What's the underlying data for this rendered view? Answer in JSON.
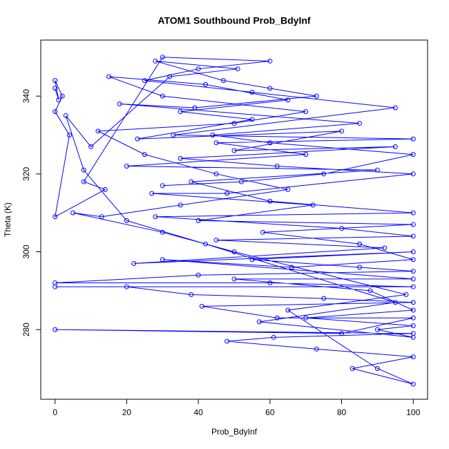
{
  "chart_data": {
    "type": "line",
    "title": "ATOM1 Southbound Prob_BdyInf",
    "x_label": "Prob_BdyInf",
    "y_label": "Theta (K)",
    "x": [
      0,
      1,
      0,
      2,
      0,
      4,
      0,
      14,
      8,
      30,
      60,
      40,
      25,
      55,
      95,
      33,
      100,
      45,
      70,
      20,
      90,
      38,
      60,
      100,
      28,
      80,
      100,
      45,
      92,
      22,
      100,
      55,
      85,
      100,
      40,
      0,
      60,
      100,
      0,
      20,
      38,
      75,
      100,
      41,
      62,
      100,
      80,
      0,
      100,
      61,
      48,
      73,
      100,
      83,
      100,
      90,
      65,
      98,
      50,
      30,
      5,
      13,
      35,
      65,
      45,
      25,
      12,
      50,
      70,
      30,
      15,
      42,
      65,
      35,
      55,
      23,
      80,
      50,
      95,
      35,
      62,
      100,
      48,
      27,
      72,
      40,
      100,
      58,
      85,
      100,
      66,
      30,
      100,
      50,
      88,
      100,
      70,
      100,
      90,
      100,
      57,
      95,
      42,
      20,
      8,
      3,
      10,
      32,
      51,
      28,
      47,
      60,
      73,
      39,
      18,
      85,
      44,
      60,
      100,
      75,
      52,
      30
    ],
    "series": [
      {
        "color": "#0000ff",
        "values": [
          342,
          339,
          344,
          340,
          336,
          330,
          309,
          316,
          318,
          350,
          349,
          347,
          344,
          341,
          337,
          330,
          329,
          328,
          325,
          322,
          321,
          318,
          313,
          310,
          309,
          306,
          304,
          303,
          301,
          297,
          300,
          298,
          296,
          295,
          294,
          292,
          292,
          291,
          291,
          291,
          289,
          288,
          287,
          286,
          283,
          283,
          279,
          280,
          279,
          278,
          277,
          275,
          273,
          270,
          266,
          270,
          285,
          289,
          300,
          305,
          310,
          309,
          312,
          316,
          320,
          325,
          331,
          333,
          336,
          340,
          345,
          343,
          339,
          336,
          334,
          329,
          331,
          326,
          327,
          324,
          322,
          320,
          315,
          315,
          312,
          308,
          307,
          305,
          302,
          298,
          296,
          298,
          293,
          293,
          290,
          285,
          283,
          281,
          280,
          278,
          282,
          287,
          302,
          308,
          321,
          335,
          327,
          345,
          347,
          349,
          344,
          342,
          340,
          337,
          338,
          333,
          330,
          328,
          325,
          320,
          318,
          317
        ]
      }
    ],
    "xlim": [
      -4,
      104
    ],
    "ylim": [
      262.1,
      354.4
    ],
    "xticks": [
      0,
      20,
      40,
      60,
      80,
      100
    ],
    "yticks": [
      280,
      300,
      320,
      340
    ],
    "markers": true
  }
}
